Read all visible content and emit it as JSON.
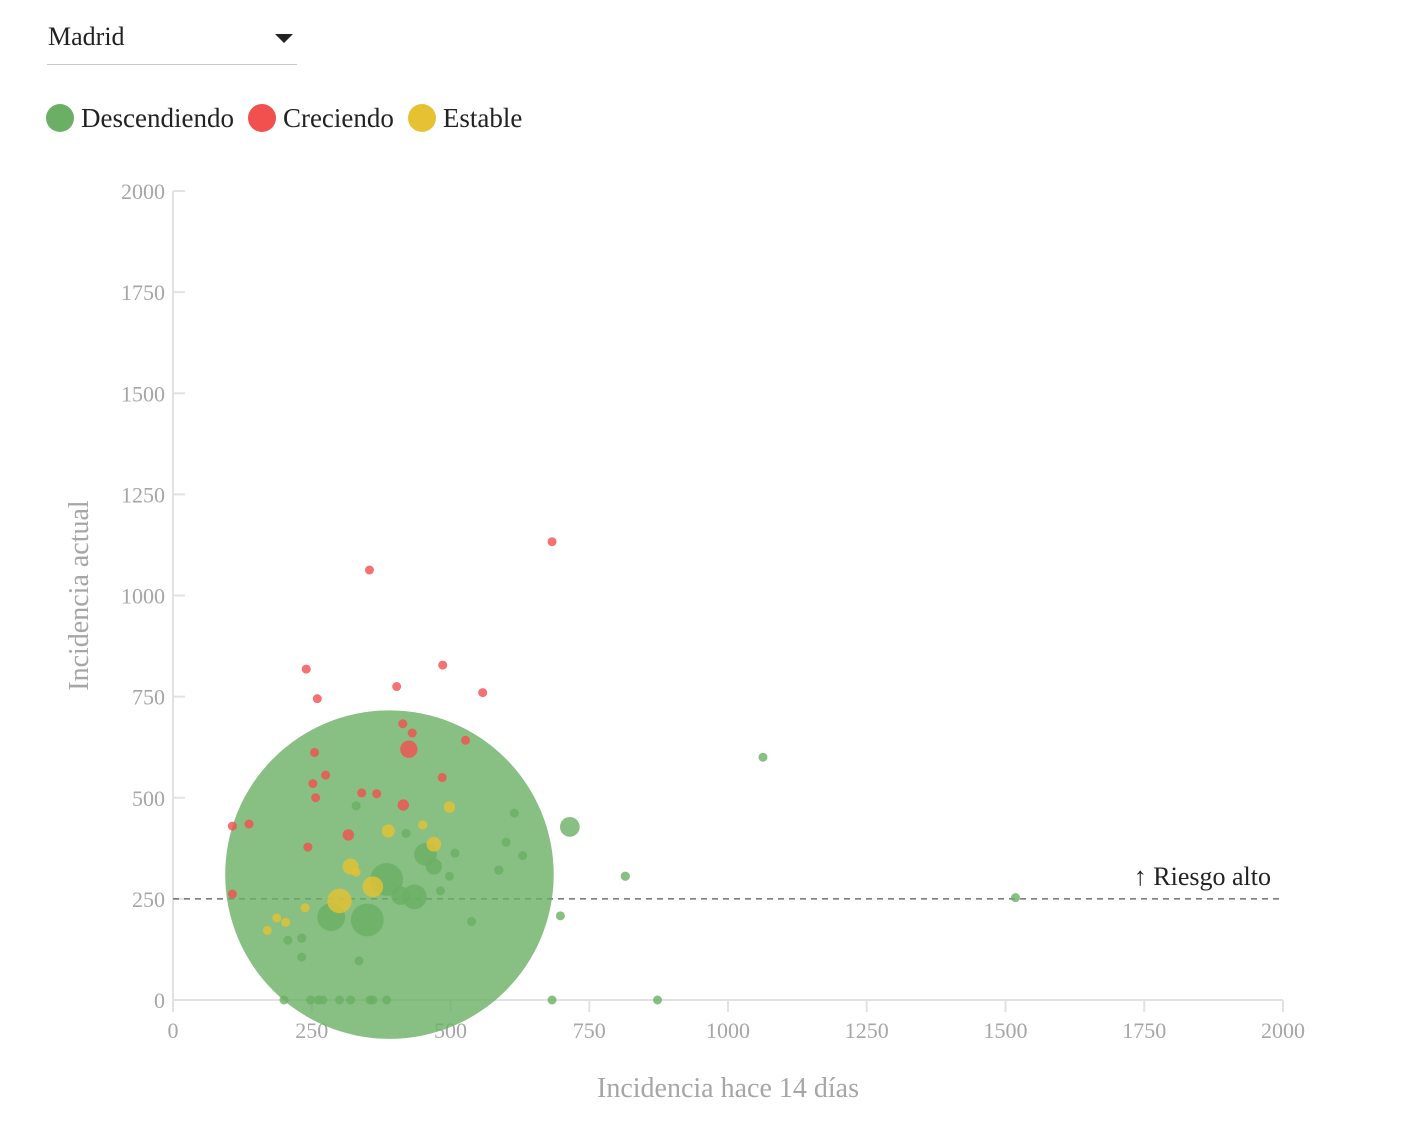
{
  "region_selector": {
    "value": "Madrid"
  },
  "legend": [
    {
      "key": "down",
      "label": "Descendiendo",
      "color": "#6aaf64"
    },
    {
      "key": "up",
      "label": "Creciendo",
      "color": "#f24f4f"
    },
    {
      "key": "flat",
      "label": "Estable",
      "color": "#e6c232"
    }
  ],
  "chart_data": {
    "type": "scatter",
    "xlabel": "Incidencia hace 14 días",
    "ylabel": "Incidencia actual",
    "xlim": [
      0,
      2000
    ],
    "ylim": [
      0,
      2000
    ],
    "xticks": [
      0,
      250,
      500,
      750,
      1000,
      1250,
      1500,
      1750,
      2000
    ],
    "yticks": [
      0,
      250,
      500,
      750,
      1000,
      1250,
      1500,
      1750,
      2000
    ],
    "grid": false,
    "reference_line": {
      "y": 250,
      "label": "↑ Riesgo alto",
      "style": "dashed"
    },
    "series": [
      {
        "name": "Descendiendo",
        "color": "#6aaf64",
        "points": [
          {
            "x": 390,
            "y": 310,
            "size": 2500
          },
          {
            "x": 715,
            "y": 428,
            "size": 9
          },
          {
            "x": 1063,
            "y": 600,
            "size": 1
          },
          {
            "x": 1518,
            "y": 253,
            "size": 1
          },
          {
            "x": 815,
            "y": 306,
            "size": 2
          },
          {
            "x": 615,
            "y": 462,
            "size": 1
          },
          {
            "x": 600,
            "y": 390,
            "size": 1
          },
          {
            "x": 630,
            "y": 357,
            "size": 1
          },
          {
            "x": 587,
            "y": 321,
            "size": 2
          },
          {
            "x": 698,
            "y": 208,
            "size": 1
          },
          {
            "x": 538,
            "y": 194,
            "size": 1
          },
          {
            "x": 508,
            "y": 363,
            "size": 1
          },
          {
            "x": 498,
            "y": 306,
            "size": 1
          },
          {
            "x": 482,
            "y": 270,
            "size": 1
          },
          {
            "x": 455,
            "y": 360,
            "size": 12
          },
          {
            "x": 435,
            "y": 255,
            "size": 14
          },
          {
            "x": 385,
            "y": 298,
            "size": 25
          },
          {
            "x": 350,
            "y": 198,
            "size": 25
          },
          {
            "x": 285,
            "y": 205,
            "size": 18
          },
          {
            "x": 410,
            "y": 258,
            "size": 8
          },
          {
            "x": 470,
            "y": 330,
            "size": 6
          },
          {
            "x": 335,
            "y": 97,
            "size": 1
          },
          {
            "x": 232,
            "y": 153,
            "size": 2
          },
          {
            "x": 207,
            "y": 148,
            "size": 1
          },
          {
            "x": 232,
            "y": 106,
            "size": 1
          },
          {
            "x": 200,
            "y": 0,
            "size": 1
          },
          {
            "x": 248,
            "y": 0,
            "size": 1
          },
          {
            "x": 262,
            "y": 0,
            "size": 1
          },
          {
            "x": 270,
            "y": 0,
            "size": 1
          },
          {
            "x": 300,
            "y": 0,
            "size": 1
          },
          {
            "x": 320,
            "y": 0,
            "size": 1
          },
          {
            "x": 355,
            "y": 0,
            "size": 1
          },
          {
            "x": 360,
            "y": 0,
            "size": 1
          },
          {
            "x": 385,
            "y": 0,
            "size": 1
          },
          {
            "x": 683,
            "y": 0,
            "size": 1
          },
          {
            "x": 873,
            "y": 0,
            "size": 1
          },
          {
            "x": 420,
            "y": 412,
            "size": 1
          },
          {
            "x": 330,
            "y": 480,
            "size": 1
          }
        ]
      },
      {
        "name": "Creciendo",
        "color": "#f24f4f",
        "points": [
          {
            "x": 683,
            "y": 1133,
            "size": 1
          },
          {
            "x": 354,
            "y": 1063,
            "size": 1
          },
          {
            "x": 240,
            "y": 818,
            "size": 1
          },
          {
            "x": 486,
            "y": 828,
            "size": 1
          },
          {
            "x": 403,
            "y": 775,
            "size": 1
          },
          {
            "x": 558,
            "y": 760,
            "size": 1
          },
          {
            "x": 260,
            "y": 745,
            "size": 1
          },
          {
            "x": 414,
            "y": 683,
            "size": 1
          },
          {
            "x": 431,
            "y": 660,
            "size": 1
          },
          {
            "x": 527,
            "y": 642,
            "size": 1
          },
          {
            "x": 425,
            "y": 620,
            "size": 7
          },
          {
            "x": 255,
            "y": 612,
            "size": 1
          },
          {
            "x": 275,
            "y": 556,
            "size": 1
          },
          {
            "x": 485,
            "y": 550,
            "size": 1
          },
          {
            "x": 252,
            "y": 535,
            "size": 1
          },
          {
            "x": 340,
            "y": 512,
            "size": 1
          },
          {
            "x": 367,
            "y": 510,
            "size": 1
          },
          {
            "x": 257,
            "y": 500,
            "size": 1
          },
          {
            "x": 137,
            "y": 435,
            "size": 1
          },
          {
            "x": 107,
            "y": 430,
            "size": 1
          },
          {
            "x": 243,
            "y": 378,
            "size": 1
          },
          {
            "x": 107,
            "y": 262,
            "size": 1
          },
          {
            "x": 415,
            "y": 482,
            "size": 3
          },
          {
            "x": 316,
            "y": 408,
            "size": 3
          }
        ]
      },
      {
        "name": "Estable",
        "color": "#e6c232",
        "points": [
          {
            "x": 498,
            "y": 477,
            "size": 3
          },
          {
            "x": 388,
            "y": 418,
            "size": 4
          },
          {
            "x": 450,
            "y": 433,
            "size": 2
          },
          {
            "x": 470,
            "y": 385,
            "size": 5
          },
          {
            "x": 320,
            "y": 330,
            "size": 6
          },
          {
            "x": 300,
            "y": 245,
            "size": 14
          },
          {
            "x": 360,
            "y": 280,
            "size": 10
          },
          {
            "x": 330,
            "y": 316,
            "size": 1
          },
          {
            "x": 187,
            "y": 203,
            "size": 1
          },
          {
            "x": 203,
            "y": 192,
            "size": 1
          },
          {
            "x": 170,
            "y": 172,
            "size": 1
          },
          {
            "x": 238,
            "y": 228,
            "size": 1
          }
        ]
      }
    ]
  }
}
